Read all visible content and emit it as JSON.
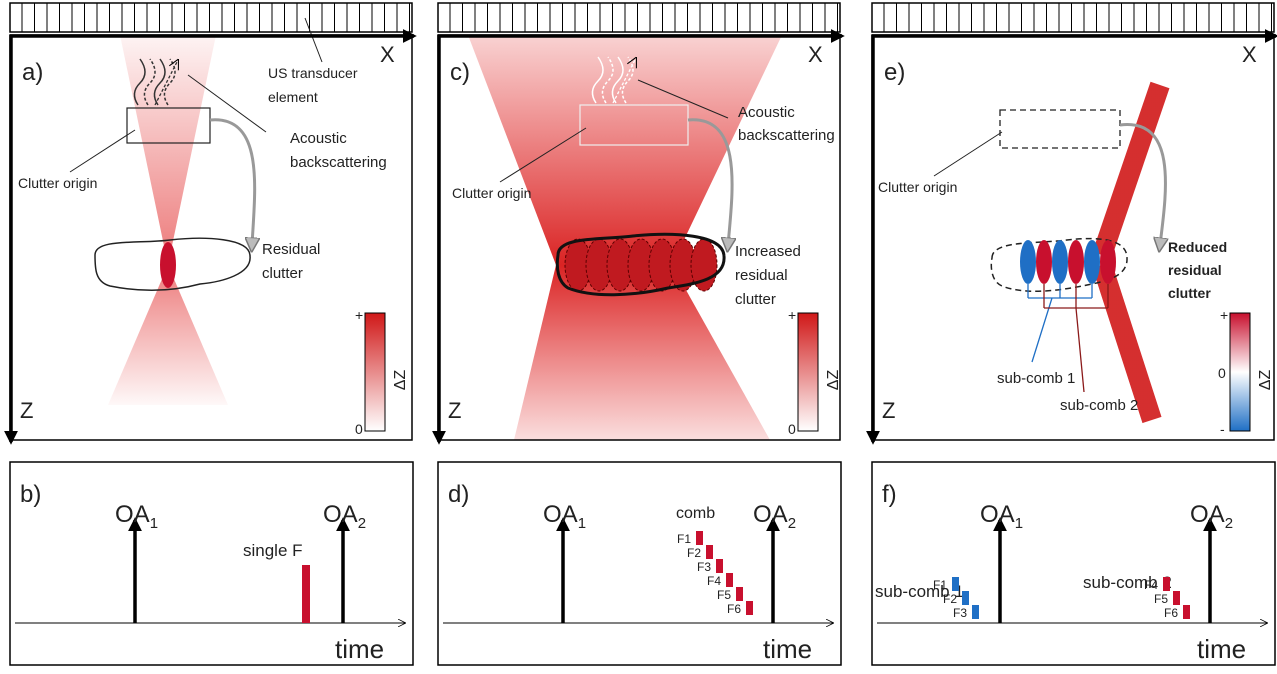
{
  "panel_a": {
    "label": "a)",
    "x_axis": "X",
    "z_axis": "Z",
    "transducer_label": [
      "US transducer",
      "element"
    ],
    "backscatter_label": [
      "Acoustic",
      "backscattering"
    ],
    "clutter_origin_label": "Clutter origin",
    "residual_label": [
      "Residual",
      "clutter"
    ],
    "colorbar": {
      "max": "+",
      "min": "0",
      "title": "ΔZ"
    }
  },
  "panel_b": {
    "label": "b)",
    "pulses": [
      {
        "base": "OA",
        "sub": "1"
      },
      {
        "base": "OA",
        "sub": "2"
      }
    ],
    "excitation_label": "single F",
    "time_label": "time"
  },
  "panel_c": {
    "label": "c)",
    "x_axis": "X",
    "z_axis": "Z",
    "backscatter_label": [
      "Acoustic",
      "backscattering"
    ],
    "clutter_origin_label": "Clutter origin",
    "residual_label": [
      "Increased",
      "residual",
      "clutter"
    ],
    "colorbar": {
      "max": "+",
      "min": "0",
      "title": "ΔZ"
    }
  },
  "panel_d": {
    "label": "d)",
    "pulses": [
      {
        "base": "OA",
        "sub": "1"
      },
      {
        "base": "OA",
        "sub": "2"
      }
    ],
    "comb_label": "comb",
    "frequencies": [
      "F1",
      "F2",
      "F3",
      "F4",
      "F5",
      "F6"
    ],
    "time_label": "time"
  },
  "panel_e": {
    "label": "e)",
    "x_axis": "X",
    "z_axis": "Z",
    "clutter_origin_label": "Clutter origin",
    "residual_label": [
      "Reduced",
      "residual",
      "clutter"
    ],
    "sub_comb_labels": [
      "sub-comb 1",
      "sub-comb 2"
    ],
    "colorbar": {
      "max": "+",
      "mid": "0",
      "min": "-",
      "title": "ΔZ"
    }
  },
  "panel_f": {
    "label": "f)",
    "pulses": [
      {
        "base": "OA",
        "sub": "1"
      },
      {
        "base": "OA",
        "sub": "2"
      }
    ],
    "sub_comb_labels": [
      "sub-comb 1",
      "sub-comb 2"
    ],
    "frequencies": [
      "F1",
      "F2",
      "F3",
      "F4",
      "F5",
      "F6"
    ],
    "time_label": "time"
  }
}
